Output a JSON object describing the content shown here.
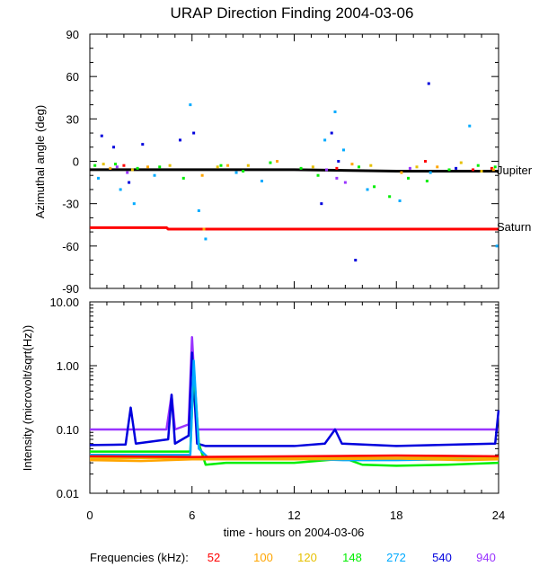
{
  "chart_data": [
    {
      "type": "scatter",
      "title": "URAP Direction Finding  2004-03-06",
      "ylabel": "Azimuthal angle (deg)",
      "xlabel": "",
      "xlim": [
        0,
        24
      ],
      "ylim": [
        -90,
        90
      ],
      "yticks": [
        "90",
        "60",
        "30",
        "0",
        "-30",
        "-60",
        "-90"
      ],
      "reference_lines": [
        {
          "name": "Jupiter",
          "color": "#000000",
          "points": [
            [
              0,
              -6
            ],
            [
              6,
              -6
            ],
            [
              12,
              -6
            ],
            [
              18,
              -7
            ],
            [
              24,
              -7
            ]
          ]
        },
        {
          "name": "Saturn",
          "color": "#ff0000",
          "points": [
            [
              0,
              -47
            ],
            [
              4.5,
              -47
            ],
            [
              4.6,
              -48
            ],
            [
              24,
              -48
            ]
          ]
        }
      ],
      "series": [
        {
          "name": "52",
          "color": "#ff0000",
          "values": [
            [
              2.0,
              -3
            ],
            [
              14.5,
              -5
            ],
            [
              19.7,
              0
            ],
            [
              22.5,
              -6
            ],
            [
              23.6,
              -5
            ]
          ]
        },
        {
          "name": "100",
          "color": "#ffa500",
          "values": [
            [
              1.2,
              -5
            ],
            [
              3.4,
              -4
            ],
            [
              6.6,
              -10
            ],
            [
              6.7,
              -48
            ],
            [
              8.1,
              -3
            ],
            [
              11.0,
              0
            ],
            [
              15.4,
              -2
            ],
            [
              18.3,
              -8
            ],
            [
              20.4,
              -4
            ],
            [
              23.7,
              -6
            ]
          ]
        },
        {
          "name": "120",
          "color": "#e6c000",
          "values": [
            [
              0.8,
              -2
            ],
            [
              2.5,
              -6
            ],
            [
              4.7,
              -3
            ],
            [
              7.5,
              -4
            ],
            [
              9.3,
              -3
            ],
            [
              13.1,
              -4
            ],
            [
              16.5,
              -3
            ],
            [
              19.2,
              -4
            ],
            [
              21.8,
              -1
            ],
            [
              23.0,
              -7
            ]
          ]
        },
        {
          "name": "148",
          "color": "#00ee00",
          "values": [
            [
              0.3,
              -3
            ],
            [
              1.5,
              -2
            ],
            [
              2.8,
              -5
            ],
            [
              4.1,
              -4
            ],
            [
              5.5,
              -12
            ],
            [
              7.7,
              -3
            ],
            [
              9.0,
              -7
            ],
            [
              10.6,
              -1
            ],
            [
              12.4,
              -5
            ],
            [
              13.4,
              -10
            ],
            [
              15.8,
              -4
            ],
            [
              16.7,
              -18
            ],
            [
              17.6,
              -25
            ],
            [
              18.7,
              -12
            ],
            [
              19.8,
              -14
            ],
            [
              21.1,
              -6
            ],
            [
              22.8,
              -3
            ],
            [
              23.8,
              -4
            ]
          ]
        },
        {
          "name": "272",
          "color": "#00aaff",
          "values": [
            [
              0.5,
              -12
            ],
            [
              1.8,
              -20
            ],
            [
              2.6,
              -30
            ],
            [
              3.8,
              -10
            ],
            [
              5.9,
              40
            ],
            [
              6.4,
              -35
            ],
            [
              6.8,
              -55
            ],
            [
              8.6,
              -8
            ],
            [
              10.1,
              -14
            ],
            [
              13.8,
              15
            ],
            [
              14.4,
              35
            ],
            [
              14.9,
              8
            ],
            [
              16.3,
              -20
            ],
            [
              18.2,
              -28
            ],
            [
              20.0,
              -8
            ],
            [
              22.3,
              25
            ],
            [
              23.9,
              -60
            ]
          ]
        },
        {
          "name": "540",
          "color": "#0000dd",
          "values": [
            [
              0.7,
              18
            ],
            [
              1.4,
              10
            ],
            [
              2.3,
              -15
            ],
            [
              3.1,
              12
            ],
            [
              5.3,
              15
            ],
            [
              6.1,
              20
            ],
            [
              13.6,
              -30
            ],
            [
              14.2,
              20
            ],
            [
              14.6,
              0
            ],
            [
              15.6,
              -70
            ],
            [
              19.9,
              55
            ],
            [
              21.5,
              -5
            ]
          ]
        },
        {
          "name": "940",
          "color": "#9933ff",
          "values": [
            [
              1.6,
              -4
            ],
            [
              2.2,
              -8
            ],
            [
              13.9,
              -6
            ],
            [
              14.5,
              -12
            ],
            [
              15.0,
              -15
            ],
            [
              18.8,
              -5
            ]
          ]
        }
      ]
    },
    {
      "type": "line",
      "title": "",
      "ylabel": "Intensity (microvolt/sqrt(Hz))",
      "xlabel": "time - hours on 2004-03-06",
      "xlim": [
        0,
        24
      ],
      "ylim": [
        0.01,
        10
      ],
      "yscale": "log",
      "xticks": [
        "0",
        "6",
        "12",
        "18",
        "24"
      ],
      "yticks": [
        "10.00",
        "1.00",
        "0.10",
        "0.01"
      ],
      "series": [
        {
          "name": "940",
          "color": "#9933ff",
          "values": [
            [
              0,
              0.1
            ],
            [
              4.5,
              0.1
            ],
            [
              4.8,
              0.35
            ],
            [
              5.0,
              0.1
            ],
            [
              5.8,
              0.12
            ],
            [
              6.0,
              2.8
            ],
            [
              6.3,
              0.1
            ],
            [
              12,
              0.1
            ],
            [
              18,
              0.1
            ],
            [
              24,
              0.1
            ]
          ]
        },
        {
          "name": "540",
          "color": "#0000dd",
          "values": [
            [
              0,
              0.057
            ],
            [
              2.1,
              0.058
            ],
            [
              2.4,
              0.22
            ],
            [
              2.7,
              0.06
            ],
            [
              4.6,
              0.07
            ],
            [
              4.8,
              0.35
            ],
            [
              5.0,
              0.06
            ],
            [
              5.8,
              0.08
            ],
            [
              6.0,
              1.6
            ],
            [
              6.3,
              0.06
            ],
            [
              6.8,
              0.055
            ],
            [
              12,
              0.055
            ],
            [
              13.8,
              0.06
            ],
            [
              14.4,
              0.1
            ],
            [
              14.8,
              0.06
            ],
            [
              18,
              0.055
            ],
            [
              23.8,
              0.06
            ],
            [
              24,
              0.2
            ]
          ]
        },
        {
          "name": "148",
          "color": "#00ee00",
          "values": [
            [
              0,
              0.045
            ],
            [
              5.9,
              0.045
            ],
            [
              6.1,
              0.9
            ],
            [
              6.4,
              0.06
            ],
            [
              6.8,
              0.028
            ],
            [
              8,
              0.03
            ],
            [
              12,
              0.03
            ],
            [
              15,
              0.035
            ],
            [
              16,
              0.028
            ],
            [
              18,
              0.027
            ],
            [
              21,
              0.028
            ],
            [
              24,
              0.03
            ]
          ]
        },
        {
          "name": "272",
          "color": "#00aaff",
          "values": [
            [
              0,
              0.04
            ],
            [
              5.9,
              0.04
            ],
            [
              6.1,
              1.2
            ],
            [
              6.4,
              0.05
            ],
            [
              7,
              0.035
            ],
            [
              9,
              0.036
            ],
            [
              12,
              0.035
            ],
            [
              15,
              0.033
            ],
            [
              18,
              0.033
            ],
            [
              21,
              0.034
            ],
            [
              24,
              0.035
            ]
          ]
        },
        {
          "name": "120",
          "color": "#e6c000",
          "values": [
            [
              0,
              0.035
            ],
            [
              6,
              0.036
            ],
            [
              7,
              0.036
            ],
            [
              12,
              0.036
            ],
            [
              18,
              0.036
            ],
            [
              24,
              0.036
            ]
          ]
        },
        {
          "name": "100",
          "color": "#ffa500",
          "values": [
            [
              0,
              0.033
            ],
            [
              3,
              0.032
            ],
            [
              6,
              0.034
            ],
            [
              12,
              0.034
            ],
            [
              18,
              0.035
            ],
            [
              22,
              0.033
            ],
            [
              24,
              0.034
            ]
          ]
        },
        {
          "name": "52",
          "color": "#ff0000",
          "values": [
            [
              0,
              0.038
            ],
            [
              6,
              0.037
            ],
            [
              12,
              0.038
            ],
            [
              18,
              0.039
            ],
            [
              24,
              0.038
            ]
          ]
        }
      ]
    }
  ],
  "legend": {
    "label": "Frequencies (kHz):",
    "items": [
      {
        "text": "52",
        "color": "#ff0000"
      },
      {
        "text": "100",
        "color": "#ffa500"
      },
      {
        "text": "120",
        "color": "#e6c000"
      },
      {
        "text": "148",
        "color": "#00ee00"
      },
      {
        "text": "272",
        "color": "#00aaff"
      },
      {
        "text": "540",
        "color": "#0000dd"
      },
      {
        "text": "940",
        "color": "#9933ff"
      }
    ]
  }
}
